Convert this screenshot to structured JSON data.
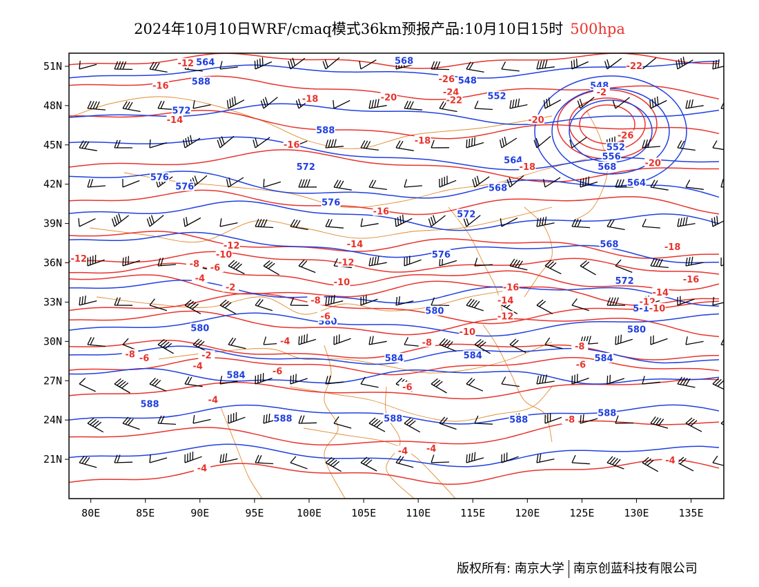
{
  "title": {
    "main": "2024年10月10日WRF/cmaq模式36km预报产品:10月10日15时",
    "level": "500hpa"
  },
  "colors": {
    "height_contour": "#1f3fe0",
    "temperature_contour": "#e8322b",
    "boundary": "#e08a30",
    "wind_barb": "#000000",
    "level_text": "#e8322b"
  },
  "axes": {
    "lon_labels": [
      "80E",
      "85E",
      "90E",
      "95E",
      "100E",
      "105E",
      "110E",
      "115E",
      "120E",
      "125E",
      "130E",
      "135E"
    ],
    "lat_labels": [
      "51N",
      "48N",
      "45N",
      "42N",
      "39N",
      "36N",
      "33N",
      "30N",
      "27N",
      "24N",
      "21N"
    ],
    "lon_range": [
      78,
      138
    ],
    "lat_range": [
      18,
      52
    ]
  },
  "height_labels": [
    {
      "text": "564",
      "lon": 90.5,
      "lat": 51.3
    },
    {
      "text": "568",
      "lon": 108.7,
      "lat": 51.4
    },
    {
      "text": "588",
      "lon": 90.1,
      "lat": 49.8
    },
    {
      "text": "572",
      "lon": 88.3,
      "lat": 47.6
    },
    {
      "text": "548",
      "lon": 114.5,
      "lat": 49.9
    },
    {
      "text": "552",
      "lon": 117.2,
      "lat": 48.7
    },
    {
      "text": "548",
      "lon": 126.6,
      "lat": 49.5
    },
    {
      "text": "588",
      "lon": 101.5,
      "lat": 46.1
    },
    {
      "text": "572",
      "lon": 99.7,
      "lat": 43.3
    },
    {
      "text": "564",
      "lon": 118.7,
      "lat": 43.8
    },
    {
      "text": "552",
      "lon": 128.1,
      "lat": 44.8
    },
    {
      "text": "556",
      "lon": 127.7,
      "lat": 44.1
    },
    {
      "text": "568",
      "lon": 127.3,
      "lat": 43.3
    },
    {
      "text": "564",
      "lon": 130.0,
      "lat": 42.1
    },
    {
      "text": "576",
      "lon": 86.3,
      "lat": 42.5
    },
    {
      "text": "576",
      "lon": 88.6,
      "lat": 41.8
    },
    {
      "text": "568",
      "lon": 117.3,
      "lat": 41.7
    },
    {
      "text": "576",
      "lon": 102.0,
      "lat": 40.6
    },
    {
      "text": "572",
      "lon": 114.4,
      "lat": 39.7
    },
    {
      "text": "568",
      "lon": 127.5,
      "lat": 37.4
    },
    {
      "text": "576",
      "lon": 112.1,
      "lat": 36.6
    },
    {
      "text": "572",
      "lon": 128.9,
      "lat": 34.6
    },
    {
      "text": "580",
      "lon": 111.5,
      "lat": 32.3
    },
    {
      "text": "580",
      "lon": 101.7,
      "lat": 31.5
    },
    {
      "text": "580",
      "lon": 90.0,
      "lat": 31.0
    },
    {
      "text": "580",
      "lon": 130.0,
      "lat": 30.9
    },
    {
      "text": "584",
      "lon": 107.8,
      "lat": 28.7
    },
    {
      "text": "584",
      "lon": 115.0,
      "lat": 28.9
    },
    {
      "text": "584",
      "lon": 127.0,
      "lat": 28.7
    },
    {
      "text": "584",
      "lon": 93.3,
      "lat": 27.4
    },
    {
      "text": "588",
      "lon": 85.4,
      "lat": 25.2
    },
    {
      "text": "588",
      "lon": 97.6,
      "lat": 24.1
    },
    {
      "text": "588",
      "lon": 107.7,
      "lat": 24.1
    },
    {
      "text": "588",
      "lon": 119.2,
      "lat": 24.0
    },
    {
      "text": "588",
      "lon": 127.3,
      "lat": 24.5
    },
    {
      "text": "5-10",
      "lon": 130.7,
      "lat": 32.5
    }
  ],
  "temperature_labels": [
    {
      "text": "-12",
      "lon": 88.7,
      "lat": 51.2
    },
    {
      "text": "-16",
      "lon": 86.4,
      "lat": 49.5
    },
    {
      "text": "-14",
      "lon": 87.7,
      "lat": 46.9
    },
    {
      "text": "-18",
      "lon": 100.1,
      "lat": 48.5
    },
    {
      "text": "-20",
      "lon": 107.3,
      "lat": 48.6
    },
    {
      "text": "-26",
      "lon": 112.6,
      "lat": 50.0
    },
    {
      "text": "-24",
      "lon": 113.0,
      "lat": 49.0
    },
    {
      "text": "-22",
      "lon": 113.3,
      "lat": 48.4
    },
    {
      "text": "-20",
      "lon": 120.8,
      "lat": 46.9
    },
    {
      "text": "-22",
      "lon": 129.8,
      "lat": 51.0
    },
    {
      "text": "-2",
      "lon": 126.8,
      "lat": 49.0
    },
    {
      "text": "-26",
      "lon": 129.0,
      "lat": 45.7
    },
    {
      "text": "-16",
      "lon": 98.4,
      "lat": 45.0
    },
    {
      "text": "-18",
      "lon": 110.4,
      "lat": 45.3
    },
    {
      "text": "-18",
      "lon": 120.0,
      "lat": 43.3
    },
    {
      "text": "-20",
      "lon": 131.5,
      "lat": 43.6
    },
    {
      "text": "-16",
      "lon": 106.6,
      "lat": 39.9
    },
    {
      "text": "-14",
      "lon": 104.2,
      "lat": 37.4
    },
    {
      "text": "-12",
      "lon": 92.9,
      "lat": 37.3
    },
    {
      "text": "-10",
      "lon": 92.2,
      "lat": 36.6
    },
    {
      "text": "-12",
      "lon": 78.9,
      "lat": 36.3
    },
    {
      "text": "-8",
      "lon": 89.5,
      "lat": 35.9
    },
    {
      "text": "-6",
      "lon": 91.4,
      "lat": 35.6
    },
    {
      "text": "-4",
      "lon": 90.0,
      "lat": 34.8
    },
    {
      "text": "-2",
      "lon": 92.8,
      "lat": 34.1
    },
    {
      "text": "-12",
      "lon": 103.4,
      "lat": 36.0
    },
    {
      "text": "-10",
      "lon": 103.0,
      "lat": 34.5
    },
    {
      "text": "-8",
      "lon": 100.6,
      "lat": 33.1
    },
    {
      "text": "-6",
      "lon": 101.5,
      "lat": 31.9
    },
    {
      "text": "-16",
      "lon": 118.5,
      "lat": 34.1
    },
    {
      "text": "-14",
      "lon": 118.0,
      "lat": 33.1
    },
    {
      "text": "-12",
      "lon": 118.0,
      "lat": 31.9
    },
    {
      "text": "-10",
      "lon": 114.5,
      "lat": 30.7
    },
    {
      "text": "-8",
      "lon": 110.8,
      "lat": 29.9
    },
    {
      "text": "-18",
      "lon": 133.3,
      "lat": 37.2
    },
    {
      "text": "-16",
      "lon": 135.0,
      "lat": 34.7
    },
    {
      "text": "-14",
      "lon": 132.2,
      "lat": 33.7
    },
    {
      "text": "-12",
      "lon": 131.0,
      "lat": 33.0
    },
    {
      "text": "-10",
      "lon": 131.9,
      "lat": 32.5
    },
    {
      "text": "-8",
      "lon": 124.8,
      "lat": 29.6
    },
    {
      "text": "-6",
      "lon": 124.9,
      "lat": 28.2
    },
    {
      "text": "-8",
      "lon": 83.6,
      "lat": 29.0
    },
    {
      "text": "-6",
      "lon": 84.9,
      "lat": 28.7
    },
    {
      "text": "-4",
      "lon": 89.8,
      "lat": 28.1
    },
    {
      "text": "-2",
      "lon": 90.6,
      "lat": 28.9
    },
    {
      "text": "-6",
      "lon": 97.1,
      "lat": 27.7
    },
    {
      "text": "-4",
      "lon": 97.8,
      "lat": 30.0
    },
    {
      "text": "-6",
      "lon": 109.0,
      "lat": 26.5
    },
    {
      "text": "-4",
      "lon": 91.2,
      "lat": 25.5
    },
    {
      "text": "-4",
      "lon": 108.6,
      "lat": 21.6
    },
    {
      "text": "-4",
      "lon": 111.2,
      "lat": 21.8
    },
    {
      "text": "-4",
      "lon": 90.2,
      "lat": 20.3
    },
    {
      "text": "-8",
      "lon": 123.9,
      "lat": 24.0
    },
    {
      "text": "-4",
      "lon": 133.1,
      "lat": 20.9
    }
  ],
  "footer": {
    "copyright": "版权所有: 南京大学",
    "partner": "南京创蓝科技有限公司"
  }
}
